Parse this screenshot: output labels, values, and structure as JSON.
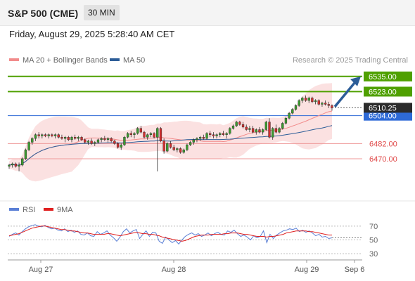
{
  "header": {
    "symbol": "S&P 500 (CME)",
    "timeframe": "30 MIN"
  },
  "datetime": "Friday, August 29, 2025 5:28:40 AM CET",
  "legend": {
    "ma20": "MA 20 + Bollinger Bands",
    "ma20_color": "#f28b8b",
    "ma50": "MA 50",
    "ma50_color": "#2c5d98",
    "rsi": "RSI",
    "rsi_color": "#5a7fd6",
    "ma9": "9MA",
    "ma9_color": "#e02020"
  },
  "copyright": "Research © 2025 Trading Central",
  "colors": {
    "up": "#3a9b2f",
    "down": "#d22f2f",
    "resistance": "#4fa000",
    "pivot": "#2e6ad6",
    "support": "#ef9a9a",
    "arrow": "#2c5d98"
  },
  "chart_data": [
    {
      "type": "candlestick",
      "interval": "30 MIN",
      "x_ticks": [
        "Aug 27",
        "Aug 28",
        "Aug 29",
        "Sep 6"
      ],
      "ylim": [
        6440,
        6541
      ],
      "last_price": "6510.25",
      "levels": [
        {
          "label": "6535.00",
          "value": 6535,
          "kind": "resistance"
        },
        {
          "label": "6523.00",
          "value": 6523,
          "kind": "resistance"
        },
        {
          "label": "6504.00",
          "value": 6504,
          "kind": "pivot"
        },
        {
          "label": "6482.00",
          "value": 6482,
          "kind": "support"
        },
        {
          "label": "6470.00",
          "value": 6470,
          "kind": "support"
        }
      ],
      "arrow": {
        "from": 6510,
        "to": 6535,
        "direction": "up"
      },
      "candles": [
        [
          6464,
          6466,
          6462,
          6465
        ],
        [
          6465,
          6467,
          6463,
          6466
        ],
        [
          6466,
          6467,
          6463,
          6464
        ],
        [
          6464,
          6467,
          6460,
          6465
        ],
        [
          6465,
          6471,
          6464,
          6470
        ],
        [
          6470,
          6478,
          6469,
          6477
        ],
        [
          6477,
          6484,
          6476,
          6483
        ],
        [
          6483,
          6487,
          6481,
          6486
        ],
        [
          6486,
          6490,
          6484,
          6489
        ],
        [
          6489,
          6491,
          6486,
          6488
        ],
        [
          6488,
          6490,
          6486,
          6489
        ],
        [
          6489,
          6490,
          6487,
          6488
        ],
        [
          6488,
          6490,
          6486,
          6489
        ],
        [
          6489,
          6490,
          6487,
          6488
        ],
        [
          6488,
          6490,
          6486,
          6489
        ],
        [
          6489,
          6490,
          6486,
          6487
        ],
        [
          6487,
          6489,
          6485,
          6486
        ],
        [
          6486,
          6488,
          6483,
          6487
        ],
        [
          6487,
          6488,
          6484,
          6485
        ],
        [
          6485,
          6488,
          6483,
          6487
        ],
        [
          6487,
          6489,
          6485,
          6486
        ],
        [
          6486,
          6488,
          6484,
          6487
        ],
        [
          6487,
          6488,
          6484,
          6485
        ],
        [
          6485,
          6486,
          6482,
          6483
        ],
        [
          6483,
          6485,
          6481,
          6484
        ],
        [
          6484,
          6486,
          6481,
          6482
        ],
        [
          6482,
          6484,
          6480,
          6483
        ],
        [
          6483,
          6486,
          6482,
          6485
        ],
        [
          6485,
          6487,
          6483,
          6486
        ],
        [
          6486,
          6488,
          6484,
          6485
        ],
        [
          6485,
          6487,
          6483,
          6486
        ],
        [
          6486,
          6487,
          6483,
          6484
        ],
        [
          6484,
          6485,
          6481,
          6482
        ],
        [
          6482,
          6483,
          6478,
          6479
        ],
        [
          6479,
          6482,
          6477,
          6481
        ],
        [
          6481,
          6488,
          6480,
          6487
        ],
        [
          6487,
          6491,
          6486,
          6490
        ],
        [
          6490,
          6492,
          6487,
          6489
        ],
        [
          6489,
          6491,
          6486,
          6490
        ],
        [
          6490,
          6495,
          6489,
          6494
        ],
        [
          6494,
          6496,
          6490,
          6491
        ],
        [
          6491,
          6492,
          6486,
          6487
        ],
        [
          6487,
          6490,
          6485,
          6489
        ],
        [
          6489,
          6491,
          6487,
          6490
        ],
        [
          6490,
          6491,
          6486,
          6487
        ],
        [
          6487,
          6495,
          6460,
          6494
        ],
        [
          6494,
          6495,
          6483,
          6484
        ],
        [
          6484,
          6486,
          6474,
          6476
        ],
        [
          6476,
          6483,
          6475,
          6482
        ],
        [
          6482,
          6484,
          6478,
          6479
        ],
        [
          6479,
          6481,
          6476,
          6477
        ],
        [
          6477,
          6479,
          6475,
          6478
        ],
        [
          6478,
          6479,
          6474,
          6475
        ],
        [
          6475,
          6478,
          6474,
          6477
        ],
        [
          6477,
          6482,
          6476,
          6481
        ],
        [
          6481,
          6484,
          6480,
          6483
        ],
        [
          6483,
          6486,
          6481,
          6485
        ],
        [
          6485,
          6487,
          6483,
          6486
        ],
        [
          6486,
          6488,
          6484,
          6487
        ],
        [
          6487,
          6489,
          6485,
          6486
        ],
        [
          6486,
          6491,
          6485,
          6490
        ],
        [
          6490,
          6492,
          6487,
          6489
        ],
        [
          6489,
          6491,
          6486,
          6488
        ],
        [
          6488,
          6490,
          6486,
          6489
        ],
        [
          6489,
          6491,
          6487,
          6490
        ],
        [
          6490,
          6492,
          6488,
          6489
        ],
        [
          6489,
          6491,
          6486,
          6490
        ],
        [
          6490,
          6495,
          6489,
          6494
        ],
        [
          6494,
          6497,
          6493,
          6496
        ],
        [
          6496,
          6500,
          6495,
          6499
        ],
        [
          6499,
          6500,
          6496,
          6497
        ],
        [
          6497,
          6499,
          6494,
          6495
        ],
        [
          6495,
          6497,
          6492,
          6493
        ],
        [
          6493,
          6496,
          6491,
          6494
        ],
        [
          6494,
          6496,
          6490,
          6491
        ],
        [
          6491,
          6494,
          6489,
          6493
        ],
        [
          6493,
          6495,
          6490,
          6491
        ],
        [
          6491,
          6494,
          6489,
          6493
        ],
        [
          6493,
          6500,
          6492,
          6499
        ],
        [
          6499,
          6502,
          6486,
          6487
        ],
        [
          6487,
          6495,
          6485,
          6494
        ],
        [
          6494,
          6497,
          6490,
          6491
        ],
        [
          6491,
          6495,
          6490,
          6494
        ],
        [
          6494,
          6499,
          6493,
          6498
        ],
        [
          6498,
          6503,
          6497,
          6502
        ],
        [
          6502,
          6507,
          6501,
          6506
        ],
        [
          6506,
          6510,
          6505,
          6509
        ],
        [
          6509,
          6513,
          6508,
          6512
        ],
        [
          6512,
          6517,
          6511,
          6516
        ],
        [
          6516,
          6519,
          6514,
          6518
        ],
        [
          6518,
          6520,
          6515,
          6516
        ],
        [
          6516,
          6519,
          6514,
          6518
        ],
        [
          6518,
          6519,
          6514,
          6515
        ],
        [
          6515,
          6517,
          6513,
          6516
        ],
        [
          6516,
          6517,
          6512,
          6513
        ],
        [
          6513,
          6515,
          6511,
          6514
        ],
        [
          6514,
          6516,
          6512,
          6513
        ],
        [
          6513,
          6515,
          6510,
          6512
        ],
        [
          6512,
          6513,
          6508,
          6510
        ]
      ]
    },
    {
      "type": "line",
      "title": "RSI",
      "ylim": [
        25,
        80
      ],
      "y_ticks": [
        "70",
        "50",
        "30"
      ],
      "series": [
        {
          "name": "RSI",
          "color": "#5a7fd6",
          "values": [
            55,
            58,
            60,
            57,
            62,
            66,
            69,
            71,
            72,
            70,
            69,
            71,
            68,
            66,
            67,
            64,
            63,
            66,
            62,
            64,
            61,
            63,
            58,
            57,
            60,
            56,
            55,
            62,
            58,
            60,
            63,
            57,
            53,
            48,
            54,
            62,
            66,
            60,
            63,
            65,
            52,
            58,
            63,
            55,
            61,
            60,
            48,
            45,
            54,
            50,
            46,
            49,
            44,
            50,
            55,
            58,
            60,
            57,
            59,
            55,
            57,
            60,
            56,
            59,
            61,
            58,
            57,
            63,
            61,
            64,
            59,
            55,
            57,
            54,
            50,
            56,
            53,
            55,
            63,
            46,
            58,
            52,
            57,
            60,
            63,
            64,
            66,
            65,
            67,
            62,
            64,
            61,
            63,
            60,
            56,
            58,
            54,
            55,
            52,
            53
          ]
        },
        {
          "name": "9MA",
          "color": "#e02020",
          "values": [
            56,
            57,
            58,
            59,
            61,
            63,
            65,
            67,
            68,
            69,
            70,
            70,
            69,
            68,
            67,
            66,
            65,
            65,
            64,
            63,
            63,
            62,
            61,
            60,
            60,
            59,
            58,
            58,
            58,
            58,
            59,
            59,
            58,
            57,
            56,
            57,
            58,
            59,
            60,
            61,
            60,
            59,
            59,
            58,
            58,
            57,
            56,
            54,
            53,
            52,
            51,
            50,
            49,
            48,
            49,
            51,
            53,
            55,
            56,
            57,
            57,
            57,
            58,
            58,
            58,
            58,
            59,
            59,
            60,
            60,
            60,
            59,
            58,
            58,
            57,
            56,
            55,
            55,
            55,
            54,
            55,
            55,
            56,
            57,
            58,
            60,
            61,
            62,
            63,
            63,
            63,
            63,
            62,
            62,
            61,
            60,
            59,
            58,
            57,
            57
          ]
        }
      ]
    }
  ]
}
